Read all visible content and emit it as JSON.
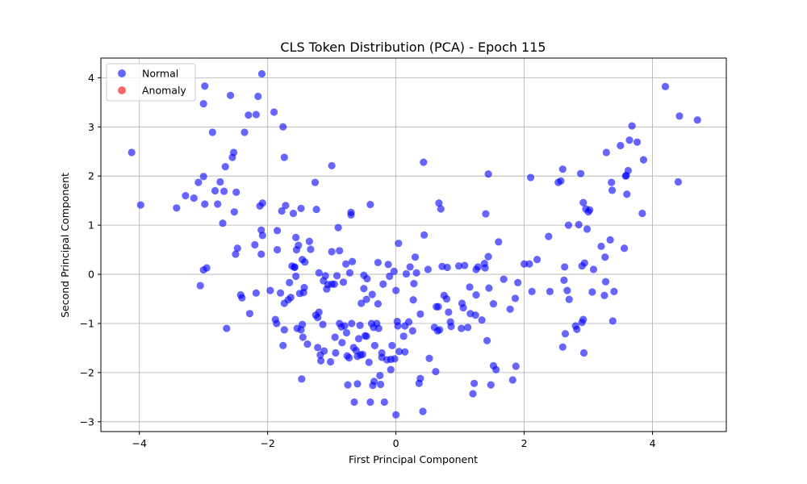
{
  "chart_data": {
    "type": "scatter",
    "title": "CLS Token Distribution (PCA) - Epoch 115",
    "xlabel": "First Principal Component",
    "ylabel": "Second Principal Component",
    "xlim": [
      -4.6,
      5.15
    ],
    "ylim": [
      -3.2,
      4.4
    ],
    "xticks": [
      -4,
      -2,
      0,
      2,
      4
    ],
    "yticks": [
      -3,
      -2,
      -1,
      0,
      1,
      2,
      3,
      4
    ],
    "xtick_labels": [
      "−4",
      "−2",
      "0",
      "2",
      "4"
    ],
    "ytick_labels": [
      "−3",
      "−2",
      "−1",
      "0",
      "1",
      "2",
      "3",
      "4"
    ],
    "grid": true,
    "legend_position": "top-left",
    "series": [
      {
        "name": "Normal",
        "color": "#0000ff",
        "points": [
          [
            -4.12,
            2.48
          ],
          [
            -3.98,
            1.41
          ],
          [
            -3.42,
            1.35
          ],
          [
            -3.28,
            1.6
          ],
          [
            -3.15,
            1.55
          ],
          [
            -3.08,
            1.87
          ],
          [
            -3.05,
            -0.23
          ],
          [
            -3.0,
            0.09
          ],
          [
            -2.95,
            0.13
          ],
          [
            -3.0,
            1.99
          ],
          [
            -2.98,
            1.43
          ],
          [
            -3.0,
            3.47
          ],
          [
            -2.98,
            3.83
          ],
          [
            -2.86,
            2.89
          ],
          [
            -2.82,
            1.7
          ],
          [
            -2.78,
            1.43
          ],
          [
            -2.74,
            1.88
          ],
          [
            -2.7,
            1.04
          ],
          [
            -2.68,
            1.69
          ],
          [
            -2.66,
            2.19
          ],
          [
            -2.64,
            -1.1
          ],
          [
            -2.58,
            3.64
          ],
          [
            -2.55,
            2.38
          ],
          [
            -2.53,
            2.48
          ],
          [
            -2.52,
            1.27
          ],
          [
            -2.5,
            0.41
          ],
          [
            -2.49,
            1.67
          ],
          [
            -2.47,
            0.53
          ],
          [
            -2.42,
            -0.42
          ],
          [
            -2.4,
            -0.48
          ],
          [
            -2.36,
            2.89
          ],
          [
            -2.3,
            3.24
          ],
          [
            -2.28,
            -0.8
          ],
          [
            -2.2,
            0.6
          ],
          [
            -2.18,
            3.25
          ],
          [
            -2.18,
            -0.38
          ],
          [
            -2.15,
            3.62
          ],
          [
            -2.12,
            1.39
          ],
          [
            -2.1,
            0.41
          ],
          [
            -2.1,
            0.9
          ],
          [
            -2.08,
            1.45
          ],
          [
            -2.08,
            0.79
          ],
          [
            -2.09,
            4.08
          ],
          [
            -1.96,
            -0.33
          ],
          [
            -1.9,
            3.3
          ],
          [
            -1.88,
            -0.92
          ],
          [
            -1.86,
            -1.0
          ],
          [
            -1.85,
            0.89
          ],
          [
            -1.85,
            0.5
          ],
          [
            -1.8,
            -0.38
          ],
          [
            -1.78,
            1.29
          ],
          [
            -1.76,
            3.0
          ],
          [
            -1.76,
            -1.45
          ],
          [
            -1.74,
            2.38
          ],
          [
            -1.74,
            -1.13
          ],
          [
            -1.74,
            -0.59
          ],
          [
            -1.72,
            1.4
          ],
          [
            -1.68,
            -0.52
          ],
          [
            -1.66,
            -0.17
          ],
          [
            -1.64,
            -0.47
          ],
          [
            -1.62,
            0.17
          ],
          [
            -1.6,
            1.24
          ],
          [
            -1.58,
            0.15
          ],
          [
            -1.58,
            0.14
          ],
          [
            -1.56,
            0.75
          ],
          [
            -1.56,
            -0.04
          ],
          [
            -1.55,
            0.5
          ],
          [
            -1.54,
            -1.1
          ],
          [
            -1.52,
            0.59
          ],
          [
            -1.5,
            -0.39
          ],
          [
            -1.48,
            1.34
          ],
          [
            -1.48,
            -1.13
          ],
          [
            -1.47,
            -2.13
          ],
          [
            -1.46,
            -1.02
          ],
          [
            -1.46,
            0.3
          ],
          [
            -1.45,
            -1.28
          ],
          [
            -1.44,
            -0.37
          ],
          [
            -1.43,
            -0.27
          ],
          [
            -1.42,
            0.25
          ],
          [
            -1.38,
            -1.42
          ],
          [
            -1.35,
            0.67
          ],
          [
            -1.33,
            0.51
          ],
          [
            -1.26,
            1.87
          ],
          [
            -1.25,
            -0.83
          ],
          [
            -1.24,
            1.32
          ],
          [
            -1.22,
            -1.49
          ],
          [
            -1.22,
            -0.88
          ],
          [
            -1.2,
            -0.77
          ],
          [
            -1.2,
            0.03
          ],
          [
            -1.18,
            -1.64
          ],
          [
            -1.17,
            -1.76
          ],
          [
            -1.14,
            -1.02
          ],
          [
            -1.12,
            -1.56
          ],
          [
            -1.13,
            -0.13
          ],
          [
            -1.1,
            -0.03
          ],
          [
            -1.08,
            -0.3
          ],
          [
            -1.06,
            -0.21
          ],
          [
            -1.02,
            -1.78
          ],
          [
            -1.0,
            -0.2
          ],
          [
            -1.0,
            2.21
          ],
          [
            -1.0,
            0.46
          ],
          [
            -0.96,
            -0.2
          ],
          [
            -0.95,
            -1.28
          ],
          [
            -0.94,
            -1.6
          ],
          [
            -0.92,
            -0.03
          ],
          [
            -0.9,
            0.95
          ],
          [
            -0.88,
            0.48
          ],
          [
            -0.88,
            -1.0
          ],
          [
            -0.85,
            -1.07
          ],
          [
            -0.84,
            -1.39
          ],
          [
            -0.82,
            -0.16
          ],
          [
            -0.8,
            -1.05
          ],
          [
            -0.78,
            0.21
          ],
          [
            -0.77,
            -1.19
          ],
          [
            -0.76,
            -1.66
          ],
          [
            -0.75,
            -2.25
          ],
          [
            -0.73,
            -1.7
          ],
          [
            -0.72,
            0.03
          ],
          [
            -0.7,
            1.21
          ],
          [
            -0.7,
            1.26
          ],
          [
            -0.69,
            -1.0
          ],
          [
            -0.68,
            0.26
          ],
          [
            -0.66,
            -1.49
          ],
          [
            -0.65,
            -2.6
          ],
          [
            -0.62,
            -1.55
          ],
          [
            -0.6,
            -1.67
          ],
          [
            -0.6,
            -2.23
          ],
          [
            -0.58,
            -1.31
          ],
          [
            -0.56,
            -1.04
          ],
          [
            -0.55,
            -1.64
          ],
          [
            -0.54,
            -0.59
          ],
          [
            -0.52,
            -1.63
          ],
          [
            -0.5,
            -0.29
          ],
          [
            -0.5,
            -0.02
          ],
          [
            -0.48,
            -1.25
          ],
          [
            -0.46,
            -1.26
          ],
          [
            -0.46,
            -0.51
          ],
          [
            -0.45,
            -0.09
          ],
          [
            -0.42,
            -1.79
          ],
          [
            -0.4,
            -2.6
          ],
          [
            -0.4,
            1.42
          ],
          [
            -0.38,
            -1.0
          ],
          [
            -0.37,
            -0.41
          ],
          [
            -0.36,
            -2.26
          ],
          [
            -0.35,
            -1.08
          ],
          [
            -0.34,
            -2.18
          ],
          [
            -0.33,
            -1.45
          ],
          [
            -0.3,
            -1.0
          ],
          [
            -0.28,
            0.24
          ],
          [
            -0.28,
            -0.6
          ],
          [
            -0.27,
            -1.1
          ],
          [
            -0.25,
            -2.06
          ],
          [
            -0.24,
            -2.24
          ],
          [
            -0.22,
            -1.6
          ],
          [
            -0.22,
            -1.69
          ],
          [
            -0.2,
            -0.2
          ],
          [
            -0.18,
            -2.6
          ],
          [
            -0.14,
            -1.74
          ],
          [
            -0.12,
            0.2
          ],
          [
            -0.1,
            -0.04
          ],
          [
            -0.08,
            -1.94
          ],
          [
            -0.08,
            -1.73
          ],
          [
            -0.06,
            -1.45
          ],
          [
            -0.03,
            0.06
          ],
          [
            -0.02,
            -1.72
          ],
          [
            0.0,
            -0.33
          ],
          [
            0.0,
            -2.86
          ],
          [
            0.02,
            -0.96
          ],
          [
            0.03,
            -1.05
          ],
          [
            0.04,
            0.63
          ],
          [
            0.05,
            -1.57
          ],
          [
            0.12,
            -1.26
          ],
          [
            0.14,
            -1.05
          ],
          [
            0.14,
            -1.58
          ],
          [
            0.16,
            0.01
          ],
          [
            0.2,
            -0.97
          ],
          [
            0.22,
            0.15
          ],
          [
            0.26,
            -1.15
          ],
          [
            0.27,
            -0.52
          ],
          [
            0.28,
            -0.19
          ],
          [
            0.3,
            0.35
          ],
          [
            0.32,
            0.03
          ],
          [
            0.36,
            -2.22
          ],
          [
            0.38,
            -2.12
          ],
          [
            0.38,
            -0.81
          ],
          [
            0.42,
            -2.79
          ],
          [
            0.43,
            2.28
          ],
          [
            0.44,
            0.8
          ],
          [
            0.5,
            0.1
          ],
          [
            0.52,
            -1.71
          ],
          [
            0.6,
            -1.08
          ],
          [
            0.62,
            -1.98
          ],
          [
            0.63,
            -0.66
          ],
          [
            0.65,
            -1.15
          ],
          [
            0.66,
            -0.66
          ],
          [
            0.67,
            1.45
          ],
          [
            0.68,
            -1.13
          ],
          [
            0.7,
            1.33
          ],
          [
            0.72,
            0.16
          ],
          [
            0.75,
            -0.43
          ],
          [
            0.79,
            -0.5
          ],
          [
            0.8,
            0.14
          ],
          [
            0.82,
            -0.77
          ],
          [
            0.85,
            -0.97
          ],
          [
            0.86,
            -1.06
          ],
          [
            0.98,
            0.17
          ],
          [
            1.02,
            -1.1
          ],
          [
            1.03,
            -0.59
          ],
          [
            1.05,
            -0.68
          ],
          [
            1.07,
            0.18
          ],
          [
            1.12,
            -1.08
          ],
          [
            1.15,
            -0.26
          ],
          [
            1.16,
            -0.8
          ],
          [
            1.2,
            -2.43
          ],
          [
            1.22,
            -2.22
          ],
          [
            1.24,
            -0.83
          ],
          [
            1.25,
            -0.42
          ],
          [
            1.25,
            0.1
          ],
          [
            1.28,
            0.15
          ],
          [
            1.34,
            -0.93
          ],
          [
            1.38,
            0.22
          ],
          [
            1.39,
            0.13
          ],
          [
            1.4,
            1.23
          ],
          [
            1.42,
            -1.35
          ],
          [
            1.44,
            2.04
          ],
          [
            1.44,
            0.36
          ],
          [
            1.45,
            -0.28
          ],
          [
            1.48,
            -2.25
          ],
          [
            1.52,
            -0.6
          ],
          [
            1.52,
            -1.86
          ],
          [
            1.56,
            -1.94
          ],
          [
            1.6,
            0.66
          ],
          [
            1.68,
            -0.1
          ],
          [
            1.78,
            -0.71
          ],
          [
            1.82,
            -2.15
          ],
          [
            1.86,
            -0.49
          ],
          [
            1.87,
            -1.87
          ],
          [
            1.9,
            -0.17
          ],
          [
            2.0,
            0.21
          ],
          [
            2.08,
            0.21
          ],
          [
            2.1,
            1.97
          ],
          [
            2.12,
            -0.35
          ],
          [
            2.2,
            0.3
          ],
          [
            2.38,
            0.77
          ],
          [
            2.4,
            -0.35
          ],
          [
            2.53,
            1.87
          ],
          [
            2.57,
            1.9
          ],
          [
            2.6,
            2.14
          ],
          [
            2.6,
            -1.48
          ],
          [
            2.62,
            -0.12
          ],
          [
            2.63,
            0.15
          ],
          [
            2.64,
            -1.21
          ],
          [
            2.67,
            -0.33
          ],
          [
            2.69,
            1.0
          ],
          [
            2.7,
            -0.51
          ],
          [
            2.8,
            -1.05
          ],
          [
            2.82,
            -1.12
          ],
          [
            2.85,
            1.01
          ],
          [
            2.88,
            2.05
          ],
          [
            2.9,
            0.17
          ],
          [
            2.9,
            -0.98
          ],
          [
            2.92,
            -0.92
          ],
          [
            2.93,
            -1.6
          ],
          [
            2.94,
            0.23
          ],
          [
            2.96,
            1.33
          ],
          [
            2.92,
            1.46
          ],
          [
            2.98,
            0.92
          ],
          [
            3.0,
            1.27
          ],
          [
            3.02,
            1.31
          ],
          [
            3.06,
            -0.36
          ],
          [
            3.08,
            0.1
          ],
          [
            3.2,
            0.57
          ],
          [
            3.26,
            0.35
          ],
          [
            3.25,
            -0.43
          ],
          [
            3.27,
            -0.15
          ],
          [
            3.28,
            2.48
          ],
          [
            3.34,
            0.7
          ],
          [
            3.36,
            1.87
          ],
          [
            3.37,
            1.71
          ],
          [
            3.38,
            -0.95
          ],
          [
            3.4,
            -0.35
          ],
          [
            3.5,
            2.62
          ],
          [
            3.56,
            0.53
          ],
          [
            3.58,
            2.0
          ],
          [
            3.59,
            2.01
          ],
          [
            3.6,
            1.63
          ],
          [
            3.62,
            2.11
          ],
          [
            3.64,
            2.73
          ],
          [
            3.68,
            3.02
          ],
          [
            3.76,
            2.69
          ],
          [
            3.84,
            1.24
          ],
          [
            3.86,
            2.33
          ],
          [
            4.2,
            3.82
          ],
          [
            4.4,
            1.88
          ],
          [
            4.42,
            3.22
          ],
          [
            4.7,
            3.14
          ]
        ]
      },
      {
        "name": "Anomaly",
        "color": "#ff0000",
        "points": []
      }
    ]
  }
}
